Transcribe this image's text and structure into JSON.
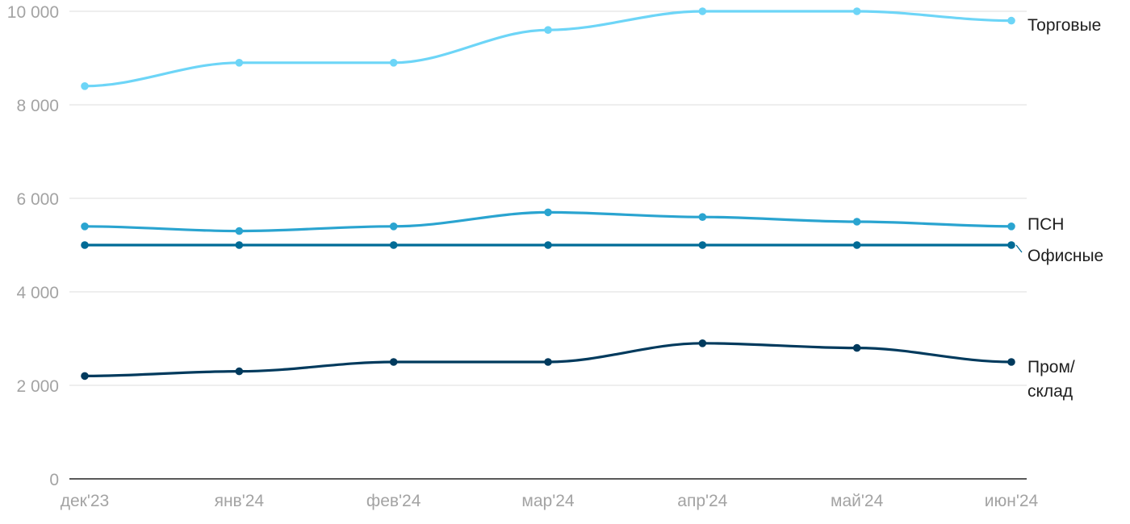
{
  "chart_data": {
    "type": "line",
    "title": "",
    "xlabel": "",
    "ylabel": "",
    "categories": [
      "дек'23",
      "янв'24",
      "фев'24",
      "мар'24",
      "апр'24",
      "май'24",
      "июн'24"
    ],
    "ylim": [
      0,
      10000
    ],
    "yticks": [
      0,
      2000,
      4000,
      6000,
      8000,
      10000
    ],
    "ytick_labels": [
      "0",
      "2 000",
      "4 000",
      "6 000",
      "8 000",
      "10 000"
    ],
    "grid": true,
    "legend": "labels at line ends (right)",
    "series": [
      {
        "name": "Торговые",
        "label_lines": [
          "Торговые"
        ],
        "color": "#6dd5f7",
        "values": [
          8400,
          8900,
          8900,
          9600,
          10000,
          10000,
          9800
        ]
      },
      {
        "name": "ПСН",
        "label_lines": [
          "ПСН"
        ],
        "color": "#2aa4d0",
        "values": [
          5400,
          5300,
          5400,
          5700,
          5600,
          5500,
          5400
        ]
      },
      {
        "name": "Офисные",
        "label_lines": [
          "Офисные"
        ],
        "color": "#006b96",
        "values": [
          5000,
          5000,
          5000,
          5000,
          5000,
          5000,
          5000
        ]
      },
      {
        "name": "Пром/склад",
        "label_lines": [
          "Пром/",
          "склад"
        ],
        "color": "#003a5d",
        "values": [
          2200,
          2300,
          2500,
          2500,
          2900,
          2800,
          2500
        ]
      }
    ]
  }
}
